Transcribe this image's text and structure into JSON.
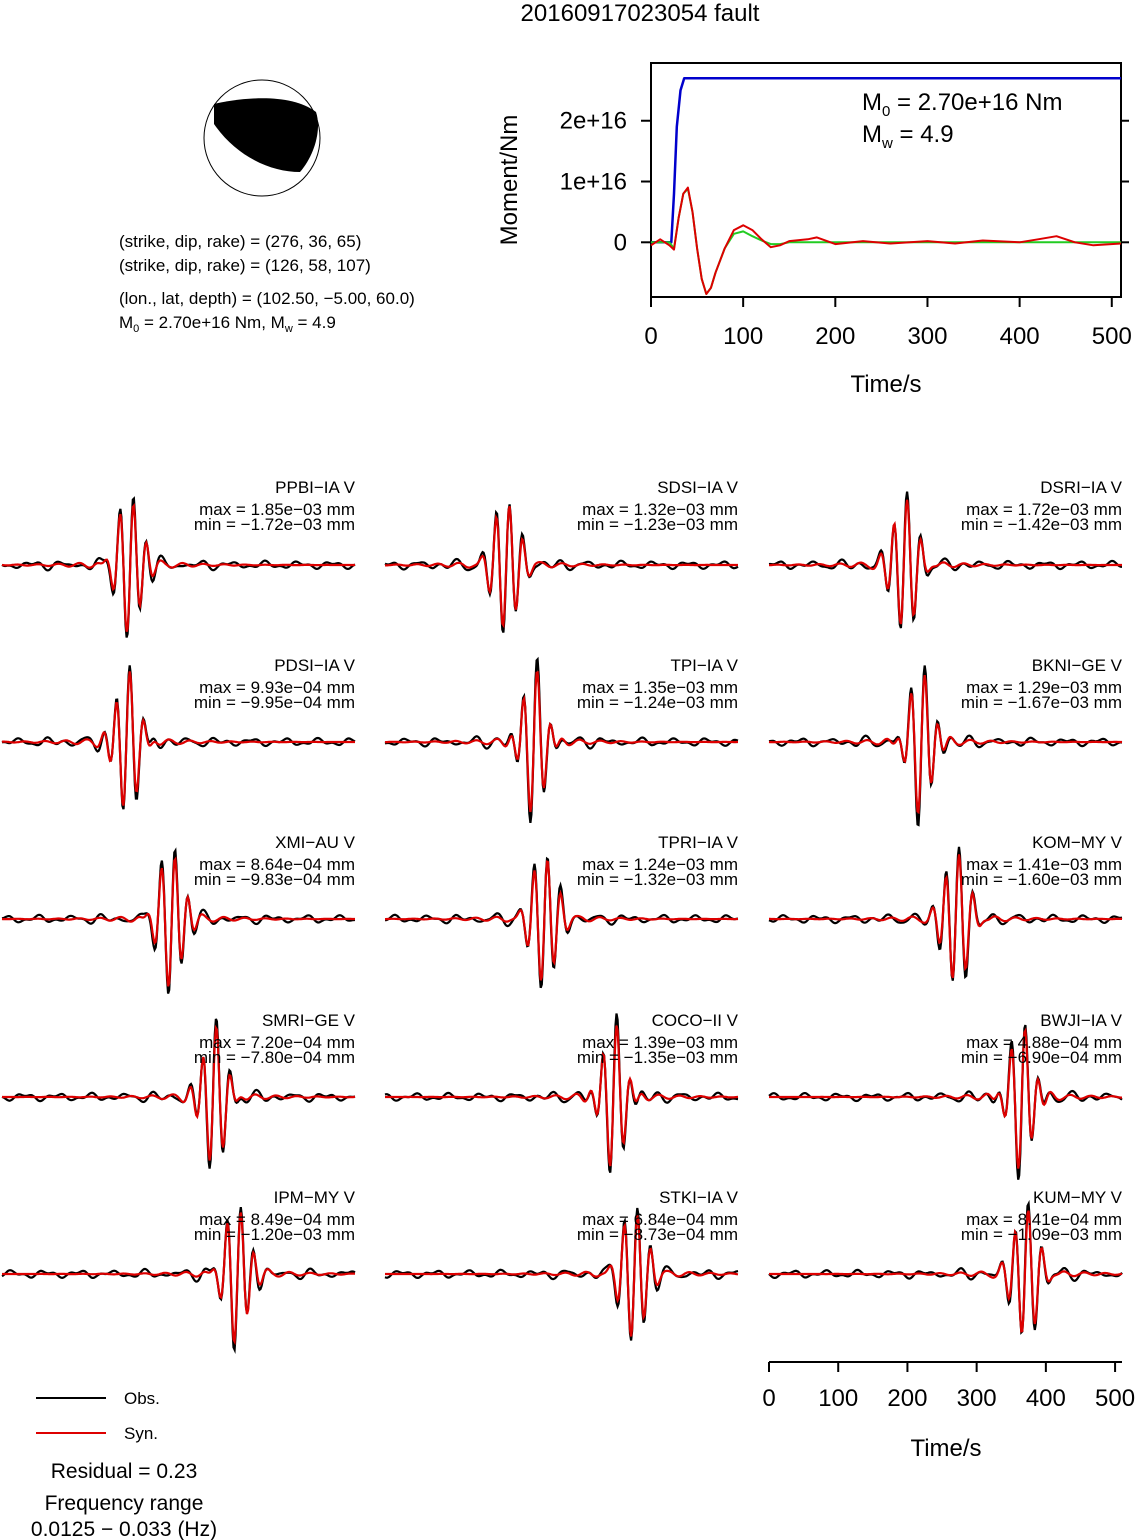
{
  "title": "20160917023054 fault",
  "mechanism": {
    "lines": [
      "(strike, dip, rake) = (276, 36, 65)",
      "(strike, dip, rake) = (126, 58, 107)",
      "(lon., lat, depth) = (102.50, −5.00, 60.0)"
    ],
    "m0_text": "M",
    "m0_sub": "0",
    "m0_rest": " = 2.70e+16 Nm, M",
    "mw_sub": "w",
    "mw_rest": " = 4.9"
  },
  "chart_data": [
    {
      "type": "line",
      "name": "moment-rate",
      "xlabel": "Time/s",
      "ylabel": "Moment/Nm",
      "xlim": [
        0,
        510
      ],
      "ylim": [
        -9000000000000000.0,
        2.95e+16
      ],
      "xticks": [
        "0",
        "100",
        "200",
        "300",
        "400",
        "500"
      ],
      "yticks": [
        "0",
        "1e+16",
        "2e+16"
      ],
      "annotation_m0": "M",
      "annotation_m0_sub": "0",
      "annotation_m0_rest": " = 2.70e+16 Nm",
      "annotation_mw": "M",
      "annotation_mw_sub": "w",
      "annotation_mw_rest": " = 4.9",
      "series": [
        {
          "color": "#0000cc",
          "x": [
            0,
            22,
            25,
            28,
            32,
            36,
            510
          ],
          "y": [
            0,
            0,
            8000000000000000.0,
            1.9e+16,
            2.5e+16,
            2.7e+16,
            2.7e+16
          ]
        },
        {
          "color": "#22cc22",
          "x": [
            0,
            10,
            20,
            25,
            30,
            35,
            40,
            45,
            50,
            55,
            60,
            65,
            70,
            80,
            90,
            100,
            110,
            120,
            130,
            140,
            150,
            170,
            200,
            250,
            300,
            400,
            510
          ],
          "y": [
            0,
            0,
            0,
            -1000000000000000.0,
            4000000000000000.0,
            8000000000000000.0,
            8800000000000000.0,
            5000000000000000.0,
            -1000000000000000.0,
            -6000000000000000.0,
            -8500000000000000.0,
            -7500000000000000.0,
            -5000000000000000.0,
            -1000000000000000.0,
            1400000000000000.0,
            1800000000000000.0,
            1000000000000000.0,
            300000000000000.0,
            -300000000000000.0,
            -300000000000000.0,
            0,
            0,
            0,
            0,
            0,
            0,
            0
          ]
        },
        {
          "color": "#dd0000",
          "x": [
            0,
            10,
            20,
            25,
            30,
            35,
            40,
            45,
            50,
            55,
            60,
            65,
            70,
            80,
            90,
            100,
            110,
            120,
            130,
            140,
            150,
            170,
            180,
            200,
            230,
            260,
            300,
            330,
            360,
            400,
            420,
            440,
            460,
            480,
            510
          ],
          "y": [
            -500000000000000.0,
            500000000000000.0,
            -500000000000000.0,
            -1200000000000000.0,
            4000000000000000.0,
            8000000000000000.0,
            9000000000000000.0,
            5000000000000000.0,
            -1000000000000000.0,
            -6000000000000000.0,
            -8500000000000000.0,
            -7500000000000000.0,
            -5000000000000000.0,
            -1000000000000000.0,
            2000000000000000.0,
            2800000000000000.0,
            2000000000000000.0,
            500000000000000.0,
            -800000000000000.0,
            -500000000000000.0,
            200000000000000.0,
            500000000000000.0,
            800000000000000.0,
            -300000000000000.0,
            200000000000000.0,
            -200000000000000.0,
            200000000000000.0,
            -200000000000000.0,
            300000000000000.0,
            0,
            500000000000000.0,
            1000000000000000.0,
            0,
            -500000000000000.0,
            -200000000000000.0
          ]
        }
      ]
    },
    {
      "type": "line",
      "name": "waveforms",
      "xlabel": "Time/s",
      "xlim": [
        0,
        510
      ],
      "xticks": [
        "0",
        "100",
        "200",
        "300",
        "400",
        "500"
      ],
      "legend": [
        {
          "label": "Obs.",
          "color": "#000000"
        },
        {
          "label": "Syn.",
          "color": "#dd0000"
        }
      ],
      "residual": "Residual = 0.23",
      "freq_label": "Frequency range",
      "freq_range": "0.0125 − 0.033 (Hz)",
      "stations": [
        {
          "name": "PPBI−IA V",
          "max": "max = 1.85e−03 mm",
          "min": "min = −1.72e−03 mm",
          "t0": 185,
          "amp": 1.0
        },
        {
          "name": "SDSI−IA V",
          "max": "max = 1.32e−03 mm",
          "min": "min = −1.23e−03 mm",
          "t0": 175,
          "amp": 1.0
        },
        {
          "name": "DSRI−IA V",
          "max": "max = 1.72e−03 mm",
          "min": "min = −1.42e−03 mm",
          "t0": 195,
          "amp": 1.0
        },
        {
          "name": "PDSI−IA V",
          "max": "max = 9.93e−04 mm",
          "min": "min = −9.95e−04 mm",
          "t0": 180,
          "amp": 1.0
        },
        {
          "name": "TPI−IA V",
          "max": "max = 1.35e−03 mm",
          "min": "min = −1.24e−03 mm",
          "t0": 215,
          "amp": 1.0
        },
        {
          "name": "BKNI−GE V",
          "max": "max = 1.29e−03 mm",
          "min": "min = −1.67e−03 mm",
          "t0": 220,
          "amp": 1.0
        },
        {
          "name": "XMI−AU V",
          "max": "max = 8.64e−04 mm",
          "min": "min = −9.83e−04 mm",
          "t0": 245,
          "amp": 1.0
        },
        {
          "name": "TPRI−IA V",
          "max": "max = 1.24e−03 mm",
          "min": "min = −1.32e−03 mm",
          "t0": 230,
          "amp": 1.0
        },
        {
          "name": "KOM−MY V",
          "max": "max = 1.41e−03 mm",
          "min": "min = −1.60e−03 mm",
          "t0": 270,
          "amp": 1.0
        },
        {
          "name": "SMRI−GE V",
          "max": "max = 7.20e−04 mm",
          "min": "min = −7.80e−04 mm",
          "t0": 305,
          "amp": 1.0
        },
        {
          "name": "COCO−II V",
          "max": "max = 1.39e−03 mm",
          "min": "min = −1.35e−03 mm",
          "t0": 330,
          "amp": 1.0
        },
        {
          "name": "BWJI−IA V",
          "max": "max = 4.88e−04 mm",
          "min": "min = −6.90e−04 mm",
          "t0": 365,
          "amp": 1.0
        },
        {
          "name": "IPM−MY V",
          "max": "max = 8.49e−04 mm",
          "min": "min = −1.20e−03 mm",
          "t0": 340,
          "amp": 1.0
        },
        {
          "name": "STKI−IA V",
          "max": "max = 6.84e−04 mm",
          "min": "min = −8.73e−04 mm",
          "t0": 360,
          "amp": 1.0
        },
        {
          "name": "KUM−MY V",
          "max": "max = 8.41e−04 mm",
          "min": "min = −1.09e−03 mm",
          "t0": 370,
          "amp": 1.0
        }
      ]
    }
  ]
}
